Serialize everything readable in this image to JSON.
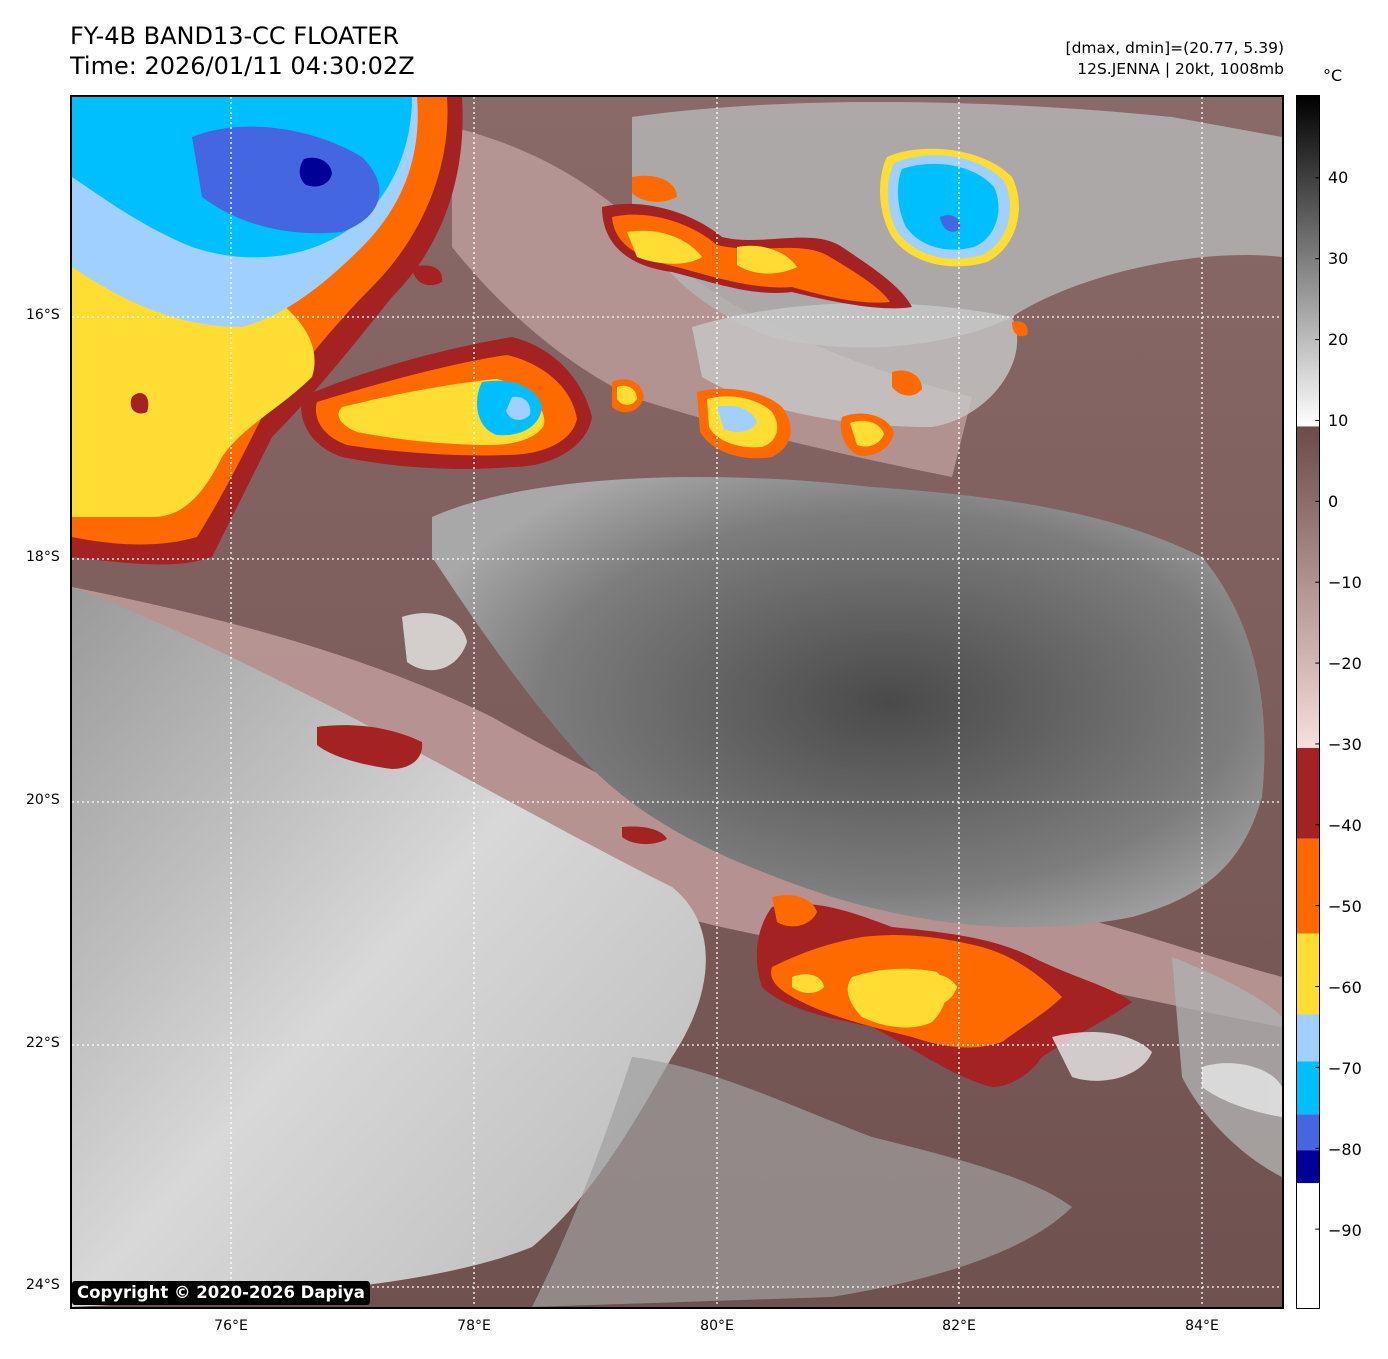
{
  "header": {
    "title_line1": "FY-4B BAND13-CC FLOATER",
    "title_line2": "Time: 2026/01/11 04:30:02Z",
    "info_line1": "[dmax, dmin]=(20.77, 5.39)",
    "info_line2": "12S.JENNA | 20kt, 1008mb"
  },
  "map": {
    "lat_labels": [
      "16°S",
      "18°S",
      "20°S",
      "22°S",
      "24°S"
    ],
    "lon_labels": [
      "76°E",
      "78°E",
      "80°E",
      "82°E",
      "84°E"
    ],
    "grid": "dotted white",
    "copyright": "Copyright © 2020-2026 Dapiya"
  },
  "colorbar": {
    "unit": "°C",
    "tick_labels": [
      "40",
      "30",
      "20",
      "10",
      "0",
      "−10",
      "−20",
      "−30",
      "−40",
      "−50",
      "−60",
      "−70",
      "−80",
      "−90"
    ],
    "colors": {
      "gray_high": "#000000",
      "gray_low": "#ffffff",
      "brown_warm": "#6b4a48",
      "pink_cool": "#f8dede",
      "dark_red": "#a52222",
      "orange": "#ff6a00",
      "yellow": "#ffdd33",
      "light_blue": "#9fd0ff",
      "cyan": "#00bfff",
      "royal_blue": "#4466e0",
      "navy": "#000099",
      "white_cold": "#ffffff"
    }
  }
}
